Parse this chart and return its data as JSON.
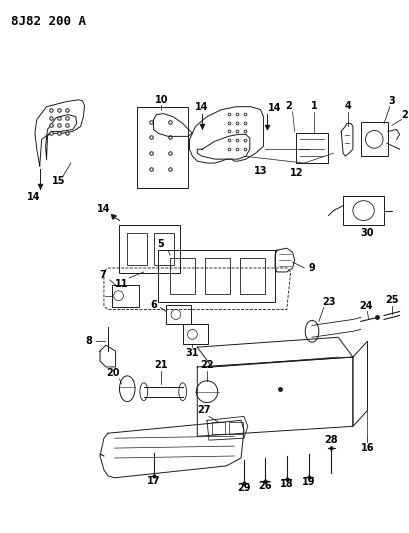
{
  "title": "8J82 200 A",
  "bg_color": "#ffffff",
  "fig_w": 4.1,
  "fig_h": 5.33,
  "dpi": 100,
  "line_color": "#1a1a1a",
  "label_fontsize": 7,
  "title_fontsize": 9
}
